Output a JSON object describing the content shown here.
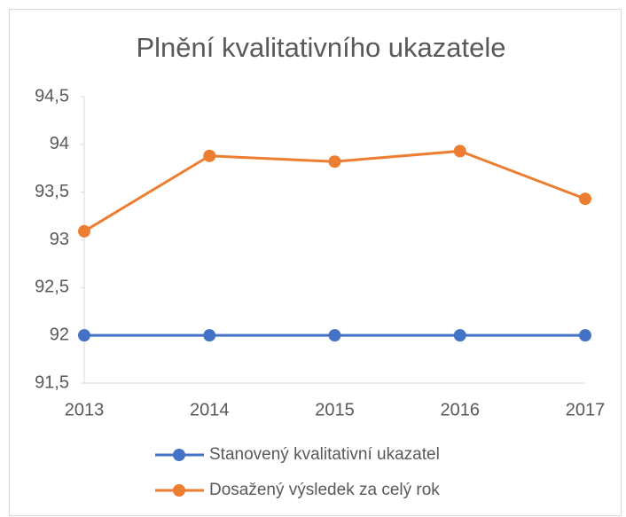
{
  "chart_data": {
    "type": "line",
    "title": "Plnění kvalitativního ukazatele",
    "categories": [
      "2013",
      "2014",
      "2015",
      "2016",
      "2017"
    ],
    "series": [
      {
        "name": "Stanovený kvalitativní ukazatel",
        "color": "#4472c4",
        "values": [
          92,
          92,
          92,
          92,
          92
        ]
      },
      {
        "name": "Dosažený výsledek za celý rok",
        "color": "#ed7d31",
        "values": [
          93.09,
          93.88,
          93.82,
          93.93,
          93.43
        ]
      }
    ],
    "ylim": [
      91.5,
      94.5
    ],
    "yticks": [
      {
        "value": 91.5,
        "label": "91,5"
      },
      92,
      {
        "value": 92.5,
        "label": "92,5"
      },
      93,
      {
        "value": 93.5,
        "label": "93,5"
      },
      94,
      {
        "value": 94.5,
        "label": "94,5"
      }
    ],
    "grid": false
  }
}
